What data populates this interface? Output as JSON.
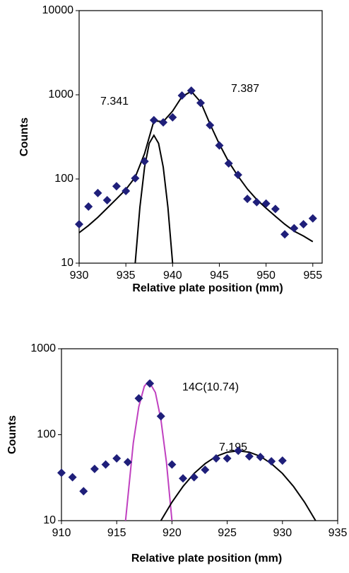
{
  "chart_data": [
    {
      "type": "scatter",
      "xlabel": "Relative plate position (mm)",
      "ylabel": "Counts",
      "log_y": true,
      "xlim": [
        930,
        956
      ],
      "ylim": [
        10,
        10000
      ],
      "xticks": [
        930,
        935,
        940,
        945,
        950,
        955
      ],
      "yticks": [
        10,
        100,
        1000,
        10000
      ],
      "annotations": [
        "7.341",
        "7.387"
      ],
      "series": [
        {
          "type": "line",
          "color": "#000000",
          "x": [
            930,
            931,
            932,
            933,
            934,
            935,
            936,
            937,
            938,
            939,
            940,
            941,
            942,
            943,
            944,
            945,
            946,
            947,
            948,
            949,
            950,
            951,
            952,
            953,
            954,
            955
          ],
          "values": [
            23,
            28,
            35,
            45,
            58,
            75,
            105,
            200,
            490,
            480,
            640,
            950,
            1100,
            820,
            450,
            260,
            160,
            108,
            76,
            57,
            45,
            36,
            29,
            24,
            21,
            18
          ]
        },
        {
          "type": "line",
          "color": "#000000",
          "x": [
            936,
            936.5,
            937,
            937.5,
            938,
            938.5,
            939,
            939.5,
            940
          ],
          "values": [
            10,
            46,
            138,
            265,
            330,
            265,
            138,
            46,
            10
          ]
        },
        {
          "type": "scatter",
          "color": "#1f1f7a",
          "x": [
            930,
            931,
            932,
            933,
            934,
            935,
            936,
            937,
            938,
            939,
            940,
            941,
            942,
            943,
            944,
            945,
            946,
            947,
            948,
            949,
            950,
            951,
            952,
            953,
            954,
            955
          ],
          "values": [
            29,
            47,
            68,
            56,
            82,
            72,
            102,
            162,
            500,
            470,
            540,
            980,
            1120,
            800,
            435,
            250,
            153,
            112,
            58,
            53,
            51,
            44,
            22,
            26,
            29,
            34
          ]
        }
      ]
    },
    {
      "type": "scatter",
      "xlabel": "Relative plate position (mm)",
      "ylabel": "Counts",
      "log_y": true,
      "xlim": [
        910,
        935
      ],
      "ylim": [
        10,
        1000
      ],
      "xticks": [
        910,
        915,
        920,
        925,
        930,
        935
      ],
      "yticks": [
        10,
        100,
        1000
      ],
      "annotations": [
        "14C(10.74)",
        "7.195"
      ],
      "series": [
        {
          "type": "line",
          "color": "#c040c0",
          "x": [
            915.8,
            916.5,
            917,
            917.5,
            917.9,
            918.5,
            919,
            919.5,
            920
          ],
          "values": [
            10,
            80,
            212,
            366,
            420,
            310,
            150,
            48,
            10
          ]
        },
        {
          "type": "line",
          "color": "#000000",
          "x": [
            919,
            920,
            921,
            922,
            923,
            924,
            925,
            926,
            927,
            928,
            929,
            930,
            931,
            932,
            933
          ],
          "values": [
            10,
            16.4,
            25,
            35.4,
            46,
            56,
            62.6,
            65,
            62.6,
            56,
            46,
            35.4,
            25,
            16.4,
            10
          ]
        },
        {
          "type": "scatter",
          "color": "#1f1f7a",
          "x": [
            910,
            911,
            912,
            913,
            914,
            915,
            916,
            917,
            918,
            919,
            920,
            921,
            922,
            923,
            924,
            925,
            926,
            927,
            928,
            929,
            930
          ],
          "values": [
            36,
            32,
            22,
            40,
            45,
            53,
            48,
            265,
            394,
            164,
            45,
            31,
            32,
            39,
            53,
            53,
            65,
            56,
            55,
            49,
            50
          ]
        }
      ]
    }
  ]
}
